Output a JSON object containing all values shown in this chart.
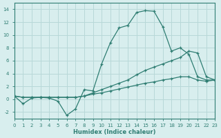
{
  "x_values": [
    0,
    1,
    2,
    3,
    4,
    5,
    6,
    7,
    8,
    9,
    10,
    11,
    12,
    13,
    14,
    15,
    16,
    17,
    18,
    19,
    20,
    21,
    22,
    23
  ],
  "line1": [
    0.5,
    -0.7,
    0.2,
    0.3,
    0.2,
    -0.3,
    -2.5,
    -1.5,
    1.5,
    1.3,
    5.5,
    8.8,
    11.1,
    11.5,
    13.5,
    13.8,
    13.7,
    11.3,
    7.5,
    8.0,
    7.0,
    3.5,
    3.0,
    3.0
  ],
  "line2": [
    0.5,
    0.3,
    0.3,
    0.3,
    0.3,
    0.3,
    0.3,
    0.3,
    0.5,
    1.0,
    1.5,
    2.0,
    2.5,
    3.0,
    3.8,
    4.5,
    5.0,
    5.5,
    6.0,
    6.5,
    7.5,
    7.2,
    3.5,
    3.0
  ],
  "line3": [
    0.5,
    0.3,
    0.3,
    0.3,
    0.3,
    0.3,
    0.3,
    0.3,
    0.5,
    0.8,
    1.0,
    1.3,
    1.6,
    1.9,
    2.2,
    2.5,
    2.7,
    3.0,
    3.2,
    3.5,
    3.5,
    3.0,
    2.8,
    3.0
  ],
  "line_color": "#2e7d72",
  "bg_color": "#d8eeee",
  "grid_color": "#b8d8d8",
  "xlabel": "Humidex (Indice chaleur)",
  "ylim": [
    -3,
    15
  ],
  "xlim": [
    0,
    23
  ],
  "yticks": [
    -2,
    0,
    2,
    4,
    6,
    8,
    10,
    12,
    14
  ],
  "xticks": [
    0,
    1,
    2,
    3,
    4,
    5,
    6,
    7,
    8,
    9,
    10,
    11,
    12,
    13,
    14,
    15,
    16,
    17,
    18,
    19,
    20,
    21,
    22,
    23
  ]
}
